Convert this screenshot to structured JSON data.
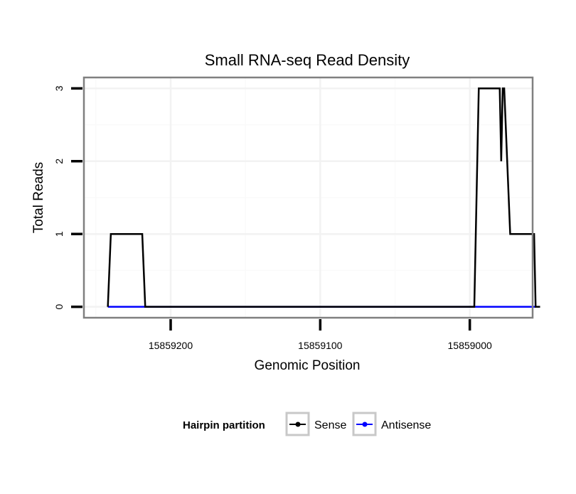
{
  "chart_data": {
    "type": "line",
    "title": "Small RNA-seq Read Density",
    "xlabel": "Genomic Position",
    "ylabel": "Total Reads",
    "x_reversed": true,
    "xlim": [
      15859258,
      15858958
    ],
    "ylim": [
      -0.15,
      3.15
    ],
    "x_ticks": [
      15859200,
      15859100,
      15859000
    ],
    "x_tick_labels": [
      "15859200",
      "15859100",
      "15859000"
    ],
    "x_minor_ticks": [
      15859250,
      15859150,
      15859050,
      15858950
    ],
    "y_ticks": [
      0,
      1,
      2,
      3
    ],
    "y_tick_labels": [
      "0",
      "1",
      "2",
      "3"
    ],
    "grid": true,
    "legend": {
      "title": "Hairpin partition",
      "position": "bottom",
      "items": [
        {
          "label": "Sense",
          "color": "#000000"
        },
        {
          "label": "Antisense",
          "color": "#0000ff"
        }
      ]
    },
    "series": [
      {
        "name": "Sense",
        "color": "#000000",
        "x": [
          15859242,
          15859240,
          15859219,
          15859217,
          15859211,
          15858997,
          15858996,
          15858994,
          15858980,
          15858979,
          15858978,
          15858977,
          15858973,
          15858972,
          15858957,
          15858956,
          15858953
        ],
        "y": [
          0,
          1,
          1,
          0,
          0,
          0,
          1,
          3,
          3,
          2,
          3,
          3,
          1,
          1,
          1,
          0,
          0
        ]
      },
      {
        "name": "Antisense",
        "color": "#0000ff",
        "x": [
          15859242,
          15859217,
          15858997,
          15858956
        ],
        "y": [
          0,
          0,
          0,
          0
        ]
      }
    ]
  }
}
